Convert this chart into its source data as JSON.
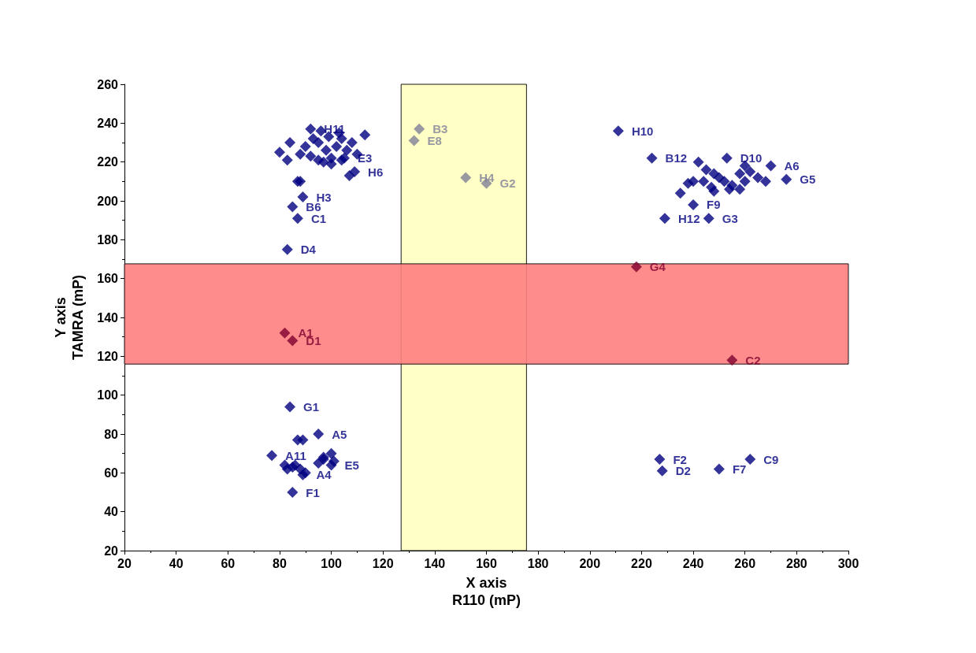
{
  "chart_data": {
    "type": "scatter",
    "xlabel": "X axis\nR110 (mP)",
    "ylabel": "Y axis\nTAMRA (mP)",
    "xlim": [
      20,
      300
    ],
    "xticks": [
      20,
      40,
      60,
      80,
      100,
      120,
      140,
      160,
      180,
      200,
      220,
      240,
      260,
      280,
      300
    ],
    "ylim": [
      20,
      260
    ],
    "yticks": [
      20,
      40,
      60,
      80,
      100,
      120,
      140,
      160,
      180,
      200,
      220,
      240,
      260
    ],
    "grid": false,
    "marker": "diamond",
    "bands": [
      {
        "axis": "x",
        "from": 127,
        "to": 175.5,
        "color": "#ffffc0"
      },
      {
        "axis": "y",
        "from": 116,
        "to": 167.6,
        "color": "#ff8080"
      }
    ],
    "series": [
      {
        "color": "#000080",
        "x": [
          83,
          87,
          85,
          89,
          92,
          105,
          109,
          211,
          224,
          253,
          270,
          276,
          240,
          229,
          246,
          84,
          95,
          77,
          89,
          85,
          100,
          227,
          228,
          250,
          262,
          80,
          84,
          83,
          88,
          90,
          93,
          96,
          95,
          98,
          100,
          102,
          104,
          106,
          108,
          110,
          113,
          97,
          100,
          104,
          107,
          92,
          95,
          99,
          103,
          87,
          88,
          242,
          245,
          248,
          250,
          252,
          244,
          240,
          238,
          247,
          255,
          258,
          260,
          262,
          265,
          258,
          254,
          260,
          248,
          235,
          268,
          83,
          85,
          88,
          90,
          87,
          89,
          95,
          97,
          100,
          101,
          82,
          86,
          97
        ],
        "values": [
          175,
          191,
          197,
          202,
          237,
          222,
          215,
          236,
          222,
          222,
          218,
          211,
          198,
          191,
          191,
          94,
          80,
          69,
          59,
          50,
          64,
          67,
          61,
          62,
          67,
          225,
          230,
          221,
          224,
          228,
          232,
          236,
          230,
          226,
          222,
          228,
          232,
          226,
          230,
          224,
          234,
          220,
          219,
          221,
          213,
          223,
          221,
          233,
          235,
          210,
          210,
          220,
          216,
          214,
          212,
          210,
          210,
          210,
          209,
          207,
          208,
          214,
          218,
          215,
          212,
          206,
          206,
          210,
          205,
          204,
          210,
          62,
          63,
          62,
          60,
          77,
          77,
          65,
          68,
          70,
          66,
          64,
          64,
          67
        ],
        "value_labels": [
          "D4",
          "C1",
          "B6",
          "H3",
          "H11",
          "E3",
          "H6",
          "H10",
          "B12",
          "D10",
          "A6",
          "G5",
          "F9",
          "H12",
          "G3",
          "G1",
          "A5",
          "A11",
          "A4",
          "F1",
          "E5",
          "F2",
          "D2",
          "F7",
          "C9",
          null,
          null,
          null,
          null,
          null,
          null,
          null,
          null,
          null,
          null,
          null,
          null,
          null,
          null,
          null,
          null,
          null,
          null,
          null,
          null,
          null,
          null,
          null,
          null,
          null,
          null,
          null,
          null,
          null,
          null,
          null,
          null,
          null,
          null,
          null,
          null,
          null,
          null,
          null,
          null,
          null,
          null,
          null,
          null,
          null,
          null,
          null,
          null,
          null,
          null,
          null,
          null,
          null,
          null,
          null,
          null,
          null,
          null,
          null
        ]
      },
      {
        "color": "#808098",
        "x": [
          134,
          132,
          152,
          160
        ],
        "values": [
          237,
          231,
          212,
          209
        ],
        "value_labels": [
          "B3",
          "E8",
          "H4",
          "G2"
        ]
      },
      {
        "color": "#800030",
        "x": [
          82,
          85,
          218,
          255
        ],
        "values": [
          132,
          128,
          166,
          118
        ],
        "value_labels": [
          "A1",
          "D1",
          "G4",
          "C2"
        ]
      }
    ]
  }
}
